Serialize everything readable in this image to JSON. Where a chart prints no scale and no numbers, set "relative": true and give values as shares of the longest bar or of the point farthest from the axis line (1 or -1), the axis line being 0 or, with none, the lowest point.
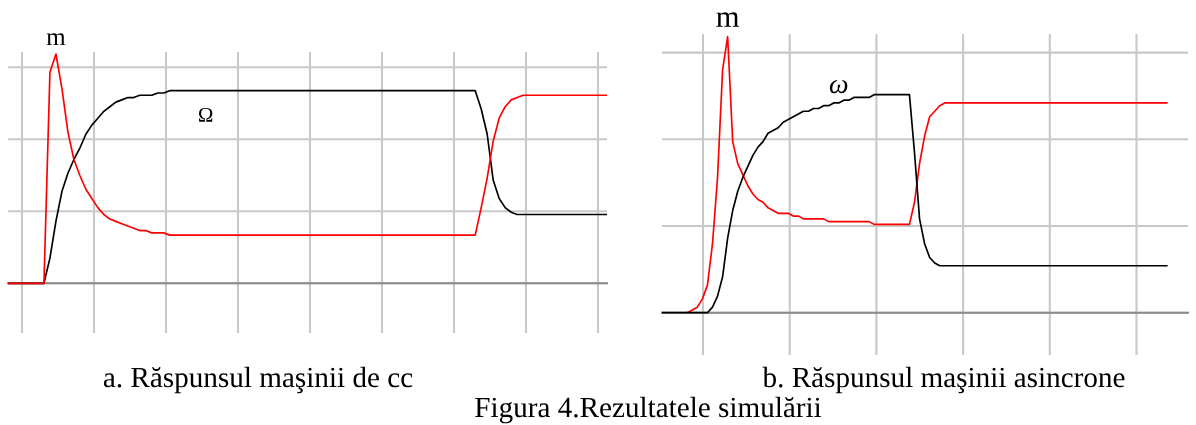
{
  "chart_data": [
    {
      "type": "line",
      "title": "a. Răspunsul maşinii de cc",
      "relative": true,
      "grid": true,
      "tick_labels": false,
      "categories": [
        null,
        null,
        null,
        null,
        null,
        null,
        null,
        null,
        null,
        null,
        null,
        null,
        null,
        null,
        null,
        null,
        null,
        null,
        null,
        null,
        null,
        null,
        null,
        null,
        null,
        null,
        null,
        null,
        null,
        null,
        null,
        null,
        null,
        null,
        null,
        null,
        null,
        null,
        null,
        null,
        null,
        null,
        null,
        null,
        null,
        null,
        null,
        null,
        null,
        null,
        null,
        null,
        null,
        null,
        null,
        null,
        null,
        null,
        null,
        null,
        null,
        null,
        null,
        null,
        null,
        null,
        null,
        null,
        null,
        null,
        null,
        null,
        null,
        null,
        null,
        null,
        null,
        null,
        null,
        null,
        null,
        null,
        null,
        null,
        null,
        null,
        null,
        null,
        null,
        null,
        null,
        null,
        null,
        null,
        null,
        null,
        null,
        null,
        null,
        null,
        null
      ],
      "series": [
        {
          "name": "Ω",
          "color": "#000000",
          "values": [
            0,
            0,
            0,
            0,
            0,
            0,
            0,
            0.11,
            0.27,
            0.4,
            0.48,
            0.54,
            0.59,
            0.65,
            0.69,
            0.72,
            0.75,
            0.77,
            0.79,
            0.8,
            0.81,
            0.81,
            0.82,
            0.82,
            0.82,
            0.83,
            0.83,
            0.84,
            0.84,
            0.84,
            0.84,
            0.84,
            0.84,
            0.84,
            0.84,
            0.84,
            0.84,
            0.84,
            0.84,
            0.84,
            0.84,
            0.84,
            0.84,
            0.84,
            0.84,
            0.84,
            0.84,
            0.84,
            0.84,
            0.84,
            0.84,
            0.84,
            0.84,
            0.84,
            0.84,
            0.84,
            0.84,
            0.84,
            0.84,
            0.84,
            0.84,
            0.84,
            0.84,
            0.84,
            0.84,
            0.84,
            0.84,
            0.84,
            0.84,
            0.84,
            0.84,
            0.84,
            0.84,
            0.84,
            0.84,
            0.84,
            0.84,
            0.84,
            0.84,
            0.76,
            0.65,
            0.45,
            0.37,
            0.33,
            0.31,
            0.3,
            0.3,
            0.3,
            0.3,
            0.3,
            0.3,
            0.3,
            0.3,
            0.3,
            0.3,
            0.3,
            0.3,
            0.3,
            0.3,
            0.3,
            0.3
          ]
        },
        {
          "name": "m",
          "color": "#ff0000",
          "values": [
            0,
            0,
            0,
            0,
            0,
            0,
            0,
            0.92,
            1,
            0.85,
            0.66,
            0.54,
            0.47,
            0.41,
            0.37,
            0.33,
            0.3,
            0.28,
            0.27,
            0.26,
            0.25,
            0.24,
            0.23,
            0.23,
            0.22,
            0.22,
            0.22,
            0.21,
            0.21,
            0.21,
            0.21,
            0.21,
            0.21,
            0.21,
            0.21,
            0.21,
            0.21,
            0.21,
            0.21,
            0.21,
            0.21,
            0.21,
            0.21,
            0.21,
            0.21,
            0.21,
            0.21,
            0.21,
            0.21,
            0.21,
            0.21,
            0.21,
            0.21,
            0.21,
            0.21,
            0.21,
            0.21,
            0.21,
            0.21,
            0.21,
            0.21,
            0.21,
            0.21,
            0.21,
            0.21,
            0.21,
            0.21,
            0.21,
            0.21,
            0.21,
            0.21,
            0.21,
            0.21,
            0.21,
            0.21,
            0.21,
            0.21,
            0.21,
            0.21,
            0.33,
            0.46,
            0.62,
            0.72,
            0.77,
            0.8,
            0.81,
            0.82,
            0.82,
            0.82,
            0.82,
            0.82,
            0.82,
            0.82,
            0.82,
            0.82,
            0.82,
            0.82,
            0.82,
            0.82,
            0.82,
            0.82
          ]
        }
      ]
    },
    {
      "type": "line",
      "title": "b. Răspunsul maşinii asincrone",
      "relative": true,
      "grid": true,
      "tick_labels": false,
      "categories": [
        null,
        null,
        null,
        null,
        null,
        null,
        null,
        null,
        null,
        null,
        null,
        null,
        null,
        null,
        null,
        null,
        null,
        null,
        null,
        null,
        null,
        null,
        null,
        null,
        null,
        null,
        null,
        null,
        null,
        null,
        null,
        null,
        null,
        null,
        null,
        null,
        null,
        null,
        null,
        null,
        null,
        null,
        null,
        null,
        null,
        null,
        null,
        null,
        null,
        null,
        null,
        null,
        null,
        null,
        null,
        null,
        null,
        null,
        null,
        null,
        null,
        null,
        null,
        null,
        null,
        null,
        null,
        null,
        null,
        null,
        null,
        null,
        null,
        null,
        null,
        null,
        null,
        null,
        null,
        null,
        null,
        null,
        null,
        null,
        null,
        null,
        null,
        null,
        null,
        null,
        null,
        null,
        null,
        null,
        null,
        null,
        null,
        null,
        null,
        null,
        null
      ],
      "series": [
        {
          "name": "m",
          "color": "#ff0000",
          "values": [
            null,
            null,
            null,
            null,
            null,
            0,
            0.01,
            0.02,
            0.05,
            0.1,
            0.25,
            0.49,
            0.88,
            1,
            0.62,
            0.54,
            0.5,
            0.46,
            0.43,
            0.41,
            0.4,
            0.38,
            0.37,
            0.36,
            0.36,
            0.36,
            0.35,
            0.35,
            0.34,
            0.34,
            0.34,
            0.34,
            0.34,
            0.33,
            0.33,
            0.33,
            0.33,
            0.33,
            0.33,
            0.33,
            0.33,
            0.33,
            0.32,
            0.32,
            0.32,
            0.32,
            0.32,
            0.32,
            0.32,
            0.32,
            0.4,
            0.54,
            0.64,
            0.71,
            0.73,
            0.75,
            0.76,
            0.76,
            0.76,
            0.76,
            0.76,
            0.76,
            0.76,
            0.76,
            0.76,
            0.76,
            0.76,
            0.76,
            0.76,
            0.76,
            0.76,
            0.76,
            0.76,
            0.76,
            0.76,
            0.76,
            0.76,
            0.76,
            0.76,
            0.76,
            0.76,
            0.76,
            0.76,
            0.76,
            0.76,
            0.76,
            0.76,
            0.76,
            0.76,
            0.76,
            0.76,
            0.76,
            0.76,
            0.76,
            0.76,
            0.76,
            0.76,
            0.76,
            0.76,
            0.76,
            0.76
          ]
        },
        {
          "name": "ω",
          "color": "#000000",
          "values": [
            0,
            0,
            0,
            0,
            0,
            0,
            0,
            0,
            0,
            0,
            0.02,
            0.06,
            0.13,
            0.27,
            0.37,
            0.44,
            0.49,
            0.53,
            0.57,
            0.6,
            0.62,
            0.65,
            0.66,
            0.67,
            0.69,
            0.7,
            0.71,
            0.72,
            0.73,
            0.73,
            0.74,
            0.74,
            0.75,
            0.75,
            0.76,
            0.76,
            0.77,
            0.77,
            0.78,
            0.78,
            0.78,
            0.78,
            0.79,
            0.79,
            0.79,
            0.79,
            0.79,
            0.79,
            0.79,
            0.79,
            0.58,
            0.34,
            0.25,
            0.2,
            0.18,
            0.17,
            0.17,
            0.17,
            0.17,
            0.17,
            0.17,
            0.17,
            0.17,
            0.17,
            0.17,
            0.17,
            0.17,
            0.17,
            0.17,
            0.17,
            0.17,
            0.17,
            0.17,
            0.17,
            0.17,
            0.17,
            0.17,
            0.17,
            0.17,
            0.17,
            0.17,
            0.17,
            0.17,
            0.17,
            0.17,
            0.17,
            0.17,
            0.17,
            0.17,
            0.17,
            0.17,
            0.17,
            0.17,
            0.17,
            0.17,
            0.17,
            0.17,
            0.17,
            0.17,
            0.17,
            0.17
          ]
        }
      ],
      "annotations": [
        "Figura 4.Rezultatele simulării"
      ]
    }
  ]
}
